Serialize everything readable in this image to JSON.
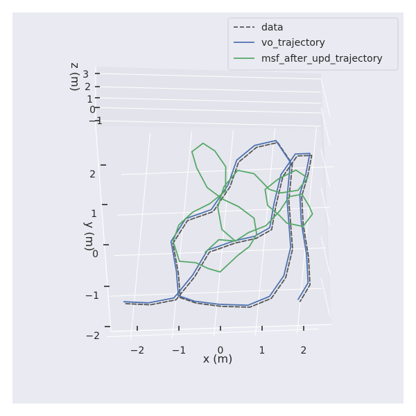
{
  "chart_data": {
    "type": "line",
    "projection": "3d",
    "xlabel": "x (m)",
    "ylabel": "y (m)",
    "zlabel": "z (m)",
    "x_ticks": [
      "−2",
      "−1",
      "0",
      "1",
      "2"
    ],
    "y_ticks": [
      "−2",
      "−1",
      "0",
      "1",
      "2"
    ],
    "z_ticks": [
      "−1",
      "0",
      "1",
      "2",
      "3"
    ],
    "xlim": [
      -2.5,
      2.5
    ],
    "ylim": [
      -2.1,
      3.0
    ],
    "zlim": [
      -1,
      3
    ],
    "grid": true,
    "legend_position": "top-right",
    "series": [
      {
        "name": "data",
        "style": "dashed",
        "color": "#555555",
        "points": [
          [
            -0.9,
            -1.1
          ],
          [
            -0.5,
            -1.25
          ],
          [
            0.1,
            -1.35
          ],
          [
            0.8,
            -1.4
          ],
          [
            1.3,
            -1.2
          ],
          [
            1.6,
            -0.7
          ],
          [
            1.7,
            0.0
          ],
          [
            1.6,
            0.6
          ],
          [
            1.5,
            1.2
          ],
          [
            1.5,
            2.1
          ],
          [
            1.1,
            2.65
          ],
          [
            0.6,
            2.55
          ],
          [
            0.2,
            2.2
          ],
          [
            0.05,
            1.6
          ],
          [
            -0.3,
            1.0
          ],
          [
            -0.9,
            0.8
          ],
          [
            -1.2,
            0.25
          ],
          [
            -1.0,
            -0.5
          ],
          [
            -0.9,
            -1.1
          ],
          null,
          [
            -2.2,
            -1.2
          ],
          [
            -1.6,
            -1.25
          ],
          [
            -1.0,
            -1.15
          ],
          [
            -0.6,
            -0.6
          ],
          [
            -0.3,
            0.0
          ],
          [
            0.3,
            0.2
          ],
          [
            0.8,
            0.3
          ],
          [
            1.15,
            0.5
          ],
          [
            1.2,
            1.1
          ],
          [
            1.3,
            1.8
          ],
          [
            1.6,
            2.3
          ],
          [
            1.95,
            2.3
          ],
          [
            1.9,
            1.8
          ],
          [
            1.8,
            1.3
          ],
          [
            1.9,
            0.6
          ],
          [
            2.1,
            -0.2
          ],
          [
            2.2,
            -0.9
          ],
          [
            2.0,
            -1.3
          ]
        ]
      },
      {
        "name": "vo_trajectory",
        "style": "solid",
        "color": "#4c72b0",
        "points": [
          [
            -0.95,
            -1.05
          ],
          [
            -0.55,
            -1.2
          ],
          [
            0.05,
            -1.3
          ],
          [
            0.75,
            -1.35
          ],
          [
            1.25,
            -1.15
          ],
          [
            1.55,
            -0.65
          ],
          [
            1.65,
            0.05
          ],
          [
            1.55,
            0.65
          ],
          [
            1.45,
            1.25
          ],
          [
            1.45,
            2.15
          ],
          [
            1.05,
            2.7
          ],
          [
            0.55,
            2.6
          ],
          [
            0.15,
            2.25
          ],
          [
            0.0,
            1.65
          ],
          [
            -0.35,
            1.05
          ],
          [
            -0.95,
            0.85
          ],
          [
            -1.25,
            0.3
          ],
          [
            -1.05,
            -0.45
          ],
          [
            -0.95,
            -1.05
          ],
          null,
          [
            -2.25,
            -1.15
          ],
          [
            -1.65,
            -1.2
          ],
          [
            -1.05,
            -1.1
          ],
          [
            -0.65,
            -0.55
          ],
          [
            -0.35,
            0.05
          ],
          [
            0.25,
            0.25
          ],
          [
            0.75,
            0.35
          ],
          [
            1.1,
            0.55
          ],
          [
            1.15,
            1.15
          ],
          [
            1.25,
            1.85
          ],
          [
            1.55,
            2.35
          ],
          [
            1.9,
            2.35
          ],
          [
            1.85,
            1.85
          ],
          [
            1.75,
            1.35
          ],
          [
            1.85,
            0.65
          ],
          [
            2.05,
            -0.15
          ],
          [
            2.15,
            -0.85
          ],
          [
            1.95,
            -1.25
          ]
        ]
      },
      {
        "name": "msf_after_upd_trajectory",
        "style": "solid",
        "color": "#55a868",
        "points": [
          [
            -0.4,
            0.0
          ],
          [
            -0.1,
            0.3
          ],
          [
            0.3,
            0.25
          ],
          [
            0.6,
            0.45
          ],
          [
            1.0,
            0.6
          ],
          [
            1.3,
            0.95
          ],
          [
            1.5,
            1.3
          ],
          [
            1.8,
            1.35
          ],
          [
            2.0,
            1.05
          ],
          [
            2.1,
            0.85
          ],
          [
            1.9,
            0.55
          ],
          [
            1.5,
            0.65
          ],
          [
            1.3,
            0.85
          ],
          [
            1.0,
            1.1
          ],
          [
            0.9,
            1.5
          ],
          [
            1.2,
            1.75
          ],
          [
            1.6,
            1.95
          ],
          [
            1.9,
            1.75
          ],
          [
            1.7,
            1.45
          ],
          [
            1.3,
            1.4
          ],
          [
            1.0,
            1.5
          ],
          [
            0.6,
            1.9
          ],
          [
            0.2,
            2.0
          ],
          [
            -0.1,
            1.6
          ],
          [
            -0.2,
            1.1
          ],
          [
            -0.05,
            0.55
          ],
          [
            0.3,
            0.25
          ],
          null,
          [
            -1.0,
            -0.2
          ],
          [
            -0.6,
            -0.25
          ],
          [
            -0.3,
            -0.4
          ],
          [
            0.0,
            -0.5
          ],
          [
            0.2,
            -0.3
          ],
          [
            0.4,
            -0.1
          ],
          [
            0.65,
            0.1
          ],
          [
            0.8,
            0.4
          ],
          [
            0.7,
            0.8
          ],
          [
            0.3,
            1.1
          ],
          [
            -0.1,
            1.3
          ],
          [
            -0.5,
            1.6
          ],
          [
            -0.8,
            2.1
          ],
          [
            -0.95,
            2.5
          ],
          [
            -0.7,
            2.7
          ],
          [
            -0.4,
            2.5
          ],
          [
            -0.1,
            2.1
          ],
          [
            -0.05,
            1.5
          ],
          [
            -0.4,
            1.2
          ],
          [
            -0.8,
            1.0
          ],
          [
            -1.1,
            0.7
          ],
          [
            -1.2,
            0.3
          ],
          [
            -1.0,
            -0.2
          ]
        ]
      }
    ]
  }
}
